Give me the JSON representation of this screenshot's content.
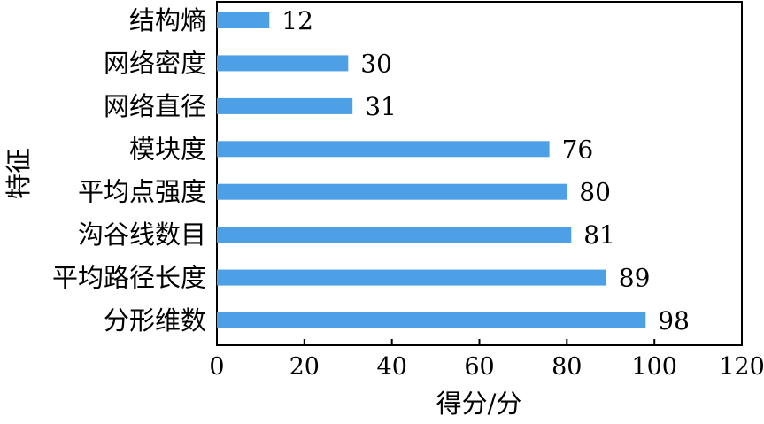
{
  "chart_data": {
    "type": "bar",
    "orientation": "horizontal",
    "categories": [
      "结构熵",
      "网络密度",
      "网络直径",
      "模块度",
      "平均点强度",
      "沟谷线数目",
      "平均路径长度",
      "分形维数"
    ],
    "values": [
      12,
      30,
      31,
      76,
      80,
      81,
      89,
      98
    ],
    "data_labels": [
      "12",
      "30",
      "31",
      "76",
      "80",
      "81",
      "89",
      "98"
    ],
    "title": "",
    "xlabel": "得分/分",
    "ylabel": "特征",
    "xlim": [
      0,
      120
    ],
    "x_ticks": [
      "0",
      "20",
      "40",
      "60",
      "80",
      "100",
      "120"
    ],
    "grid": false,
    "legend": "none",
    "colors": {
      "bar": "#4d9fe6",
      "axis": "#000000",
      "text": "#000000",
      "background": "#ffffff"
    }
  }
}
